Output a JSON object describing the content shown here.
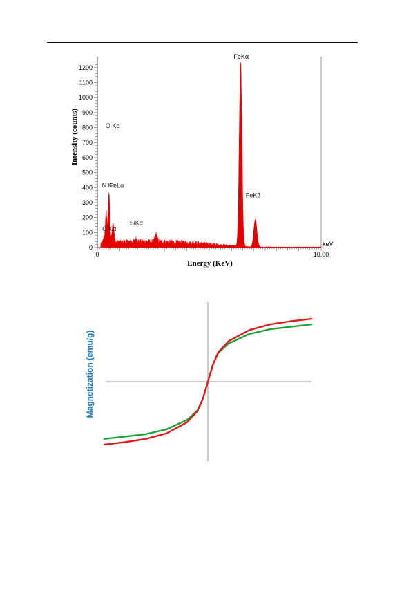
{
  "chart_data": [
    {
      "type": "area",
      "xlabel": "Energy (KeV)",
      "ylabel": "Intensity (counts)",
      "x_unit": "keV",
      "xlim": [
        0,
        10.0
      ],
      "ylim": [
        0,
        1250
      ],
      "x_tick_labels": [
        "0",
        "10.00"
      ],
      "y_ticks": [
        0,
        100,
        200,
        300,
        400,
        500,
        600,
        700,
        800,
        900,
        1000,
        1100,
        1200
      ],
      "color": "#e30000",
      "peaks": [
        {
          "label": "C Kα",
          "x": 0.28,
          "y": 55
        },
        {
          "label": "N Kα",
          "x": 0.39,
          "y": 230
        },
        {
          "label": "O Kα",
          "x": 0.52,
          "y": 355
        },
        {
          "label": "FeLα",
          "x": 0.7,
          "y": 160
        },
        {
          "label": "SiKα",
          "x": 1.74,
          "y": 40
        },
        {
          "label": "",
          "x": 2.62,
          "y": 70
        },
        {
          "label": "FeKα",
          "x": 6.4,
          "y": 1250
        },
        {
          "label": "FeKβ",
          "x": 7.06,
          "y": 205
        }
      ]
    },
    {
      "type": "line",
      "ylabel": "Magnetization (emu/g)",
      "series": [
        {
          "color": "#1aa33a",
          "x": [
            -1,
            -0.8,
            -0.6,
            -0.4,
            -0.2,
            -0.1,
            -0.05,
            0,
            0.05,
            0.1,
            0.2,
            0.4,
            0.6,
            0.8,
            1
          ],
          "y": [
            -0.72,
            -0.69,
            -0.66,
            -0.6,
            -0.48,
            -0.36,
            -0.22,
            0,
            0.22,
            0.36,
            0.48,
            0.6,
            0.66,
            0.69,
            0.72
          ]
        },
        {
          "color": "#e31b1b",
          "x": [
            -1,
            -0.8,
            -0.6,
            -0.4,
            -0.2,
            -0.1,
            -0.05,
            0,
            0.05,
            0.1,
            0.2,
            0.4,
            0.6,
            0.8,
            1
          ],
          "y": [
            -0.79,
            -0.76,
            -0.72,
            -0.65,
            -0.51,
            -0.37,
            -0.22,
            0,
            0.22,
            0.37,
            0.51,
            0.65,
            0.72,
            0.76,
            0.79
          ]
        }
      ]
    }
  ]
}
